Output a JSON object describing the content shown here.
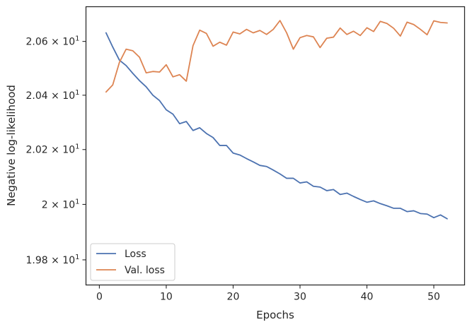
{
  "chart_data": {
    "type": "line",
    "xlabel": "Epochs",
    "ylabel": "Negative log-likelihood",
    "xlim": [
      -2,
      54.6
    ],
    "ylim": [
      19.71,
      20.73
    ],
    "y_scale": "log",
    "grid": false,
    "legend_position": "lower-left",
    "x_ticks": [
      0,
      10,
      20,
      30,
      40,
      50
    ],
    "x_tick_labels": [
      "0",
      "10",
      "20",
      "30",
      "40",
      "50"
    ],
    "y_ticks": [
      19.8,
      20.0,
      20.2,
      20.4,
      20.6
    ],
    "y_tick_labels": [
      {
        "base": "1.98 × 10",
        "exp": "1"
      },
      {
        "base": "2 × 10",
        "exp": "1"
      },
      {
        "base": "2.02 × 10",
        "exp": "1"
      },
      {
        "base": "2.04 × 10",
        "exp": "1"
      },
      {
        "base": "2.06 × 10",
        "exp": "1"
      }
    ],
    "x": [
      1,
      2,
      3,
      4,
      5,
      6,
      7,
      8,
      9,
      10,
      11,
      12,
      13,
      14,
      15,
      16,
      17,
      18,
      19,
      20,
      21,
      22,
      23,
      24,
      25,
      26,
      27,
      28,
      29,
      30,
      31,
      32,
      33,
      34,
      35,
      36,
      37,
      38,
      39,
      40,
      41,
      42,
      43,
      44,
      45,
      46,
      47,
      48,
      49,
      50,
      51,
      52
    ],
    "series": [
      {
        "name": "Loss",
        "color": "#4c72b0",
        "values": [
          20.632,
          20.579,
          20.53,
          20.51,
          20.481,
          20.454,
          20.431,
          20.4,
          20.38,
          20.346,
          20.33,
          20.295,
          20.303,
          20.27,
          20.28,
          20.259,
          20.244,
          20.215,
          20.215,
          20.187,
          20.18,
          20.167,
          20.155,
          20.142,
          20.138,
          20.125,
          20.111,
          20.095,
          20.095,
          20.078,
          20.082,
          20.066,
          20.063,
          20.05,
          20.054,
          20.036,
          20.041,
          20.029,
          20.018,
          20.008,
          20.013,
          20.003,
          19.995,
          19.986,
          19.986,
          19.974,
          19.977,
          19.967,
          19.965,
          19.952,
          19.962,
          19.948
        ]
      },
      {
        "name": "Val. loss",
        "color": "#dd8452",
        "values": [
          20.412,
          20.438,
          20.522,
          20.571,
          20.565,
          20.541,
          20.483,
          20.488,
          20.486,
          20.513,
          20.468,
          20.476,
          20.452,
          20.584,
          20.642,
          20.63,
          20.582,
          20.597,
          20.586,
          20.635,
          20.628,
          20.645,
          20.632,
          20.641,
          20.626,
          20.645,
          20.678,
          20.632,
          20.571,
          20.614,
          20.622,
          20.617,
          20.577,
          20.612,
          20.616,
          20.65,
          20.626,
          20.638,
          20.622,
          20.651,
          20.637,
          20.675,
          20.667,
          20.649,
          20.62,
          20.672,
          20.663,
          20.645,
          20.625,
          20.677,
          20.671,
          20.669
        ]
      }
    ]
  }
}
